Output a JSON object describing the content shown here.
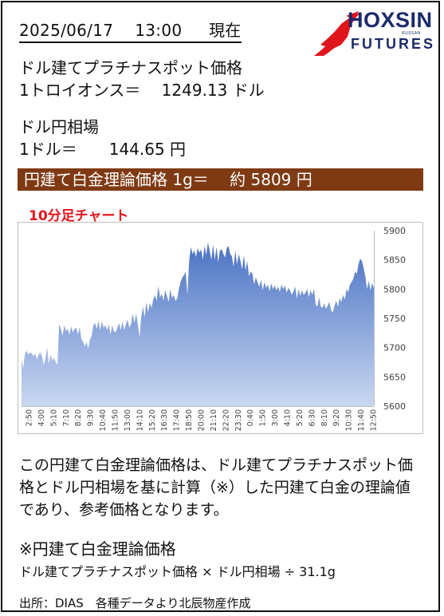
{
  "header": {
    "datetime": "2025/06/17　 13:00　  現在"
  },
  "logo": {
    "brand_top": "HOXSIN",
    "brand_bottom": "FUTURES",
    "small_text": "RUSSAN",
    "colors": {
      "navy": "#1a2a6b",
      "red": "#e0141b"
    }
  },
  "platinum": {
    "label": "ドル建てプラチナスポット価格",
    "unit_line": "1トロイオンス＝　 1249.13 ドル"
  },
  "fx": {
    "label": "ドル円相場",
    "unit_line": "1ドル＝　　144.65 円"
  },
  "banner": {
    "text": "円建て白金理論価格 1g＝　 約 5809 円",
    "background": "#7f3a13"
  },
  "chart_title": "10分足チャート",
  "chart_data": {
    "type": "area",
    "ylim": [
      5600,
      5900
    ],
    "yticks": [
      5600,
      5650,
      5700,
      5750,
      5800,
      5850,
      5900
    ],
    "xtick_labels": [
      "2:50",
      "4:00",
      "5:10",
      "7:10",
      "8:20",
      "9:30",
      "10:40",
      "11:50",
      "13:00",
      "14:10",
      "15:20",
      "16:30",
      "17:40",
      "18:50",
      "20:00",
      "21:10",
      "22:20",
      "23:30",
      "0:40",
      "1:50",
      "3:00",
      "4:10",
      "5:20",
      "6:30",
      "8:10",
      "9:20",
      "10:30",
      "11:40",
      "12:50"
    ],
    "fill_color_top": "#4a72c4",
    "fill_color_bottom": "#c9d7f1",
    "values": [
      5680,
      5665,
      5690,
      5695,
      5688,
      5692,
      5690,
      5685,
      5690,
      5680,
      5688,
      5692,
      5685,
      5670,
      5682,
      5700,
      5672,
      5688,
      5678,
      5682,
      5676,
      5670,
      5740,
      5732,
      5720,
      5738,
      5728,
      5732,
      5722,
      5736,
      5726,
      5732,
      5734,
      5722,
      5735,
      5715,
      5710,
      5702,
      5710,
      5698,
      5714,
      5720,
      5738,
      5742,
      5732,
      5746,
      5730,
      5745,
      5734,
      5738,
      5730,
      5740,
      5722,
      5738,
      5728,
      5726,
      5734,
      5742,
      5730,
      5745,
      5730,
      5740,
      5748,
      5734,
      5740,
      5758,
      5742,
      5758,
      5740,
      5718,
      5752,
      5770,
      5752,
      5778,
      5760,
      5776,
      5768,
      5782,
      5790,
      5780,
      5805,
      5786,
      5792,
      5780,
      5798,
      5788,
      5778,
      5800,
      5785,
      5790,
      5780,
      5784,
      5800,
      5812,
      5820,
      5824,
      5830,
      5790,
      5848,
      5872,
      5860,
      5866,
      5855,
      5870,
      5862,
      5868,
      5850,
      5874,
      5858,
      5880,
      5865,
      5850,
      5876,
      5850,
      5872,
      5846,
      5866,
      5868,
      5860,
      5854,
      5870,
      5874,
      5860,
      5856,
      5838,
      5866,
      5842,
      5860,
      5848,
      5834,
      5858,
      5832,
      5848,
      5822,
      5830,
      5826,
      5808,
      5820,
      5812,
      5804,
      5816,
      5798,
      5812,
      5802,
      5808,
      5796,
      5810,
      5800,
      5806,
      5798,
      5804,
      5795,
      5808,
      5800,
      5806,
      5794,
      5802,
      5798,
      5790,
      5796,
      5804,
      5784,
      5800,
      5788,
      5798,
      5790,
      5794,
      5800,
      5786,
      5798,
      5790,
      5800,
      5774,
      5770,
      5786,
      5770,
      5768,
      5776,
      5766,
      5772,
      5778,
      5764,
      5760,
      5772,
      5780,
      5770,
      5785,
      5778,
      5790,
      5782,
      5800,
      5795,
      5808,
      5812,
      5818,
      5830,
      5826,
      5842,
      5852,
      5848,
      5836,
      5822,
      5800,
      5814,
      5798,
      5810,
      5802
    ]
  },
  "description": "この円建て白金理論価格は、ドル建てプラチナスポット価格とドル円相場を基に計算（※）した円建て白金の理論値であり、参考価格となります。",
  "note": {
    "title": "※円建て白金理論価格",
    "formula": "ドル建てプラチナスポット価格 × ドル円相場 ÷ 31.1g"
  },
  "source": "出所：DIAS　各種データより北辰物産作成"
}
